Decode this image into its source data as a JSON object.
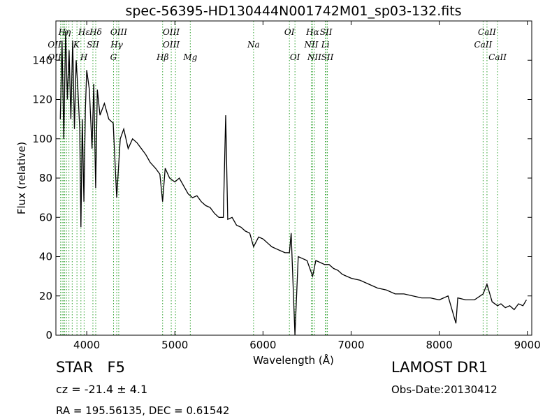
{
  "chart_data": {
    "type": "line",
    "title": "spec-56395-HD130444N001742M01_sp03-132.fits",
    "xlabel": "Wavelength (Å)",
    "ylabel": "Flux (relative)",
    "xlim": [
      3650,
      9050
    ],
    "ylim": [
      0,
      160
    ],
    "xticks": [
      4000,
      5000,
      6000,
      7000,
      8000,
      9000
    ],
    "yticks": [
      0,
      20,
      40,
      60,
      80,
      100,
      120,
      140
    ],
    "grid": false,
    "line_color": "#000000",
    "marker_color": "#2ca02c",
    "spectrum": {
      "x": [
        3700,
        3720,
        3740,
        3760,
        3780,
        3800,
        3820,
        3840,
        3860,
        3880,
        3900,
        3920,
        3934,
        3950,
        3968,
        3985,
        4000,
        4030,
        4060,
        4080,
        4101,
        4120,
        4150,
        4200,
        4250,
        4300,
        4340,
        4380,
        4420,
        4470,
        4520,
        4570,
        4620,
        4670,
        4720,
        4780,
        4830,
        4861,
        4890,
        4940,
        5000,
        5050,
        5100,
        5150,
        5200,
        5250,
        5300,
        5350,
        5400,
        5450,
        5500,
        5550,
        5577,
        5600,
        5650,
        5700,
        5750,
        5800,
        5850,
        5893,
        5950,
        6000,
        6050,
        6100,
        6150,
        6200,
        6250,
        6300,
        6320,
        6363,
        6400,
        6450,
        6500,
        6563,
        6600,
        6650,
        6700,
        6750,
        6800,
        6850,
        6900,
        6950,
        7000,
        7100,
        7200,
        7300,
        7400,
        7500,
        7600,
        7700,
        7800,
        7900,
        8000,
        8100,
        8190,
        8210,
        8300,
        8400,
        8498,
        8542,
        8600,
        8662,
        8700,
        8750,
        8800,
        8850,
        8900,
        8950,
        8990
      ],
      "y": [
        110,
        150,
        100,
        155,
        120,
        145,
        110,
        150,
        105,
        140,
        125,
        105,
        55,
        110,
        68,
        115,
        135,
        125,
        95,
        128,
        75,
        125,
        112,
        118,
        110,
        108,
        70,
        100,
        105,
        95,
        100,
        98,
        95,
        92,
        88,
        85,
        82,
        68,
        85,
        80,
        78,
        80,
        76,
        72,
        70,
        71,
        68,
        66,
        65,
        62,
        60,
        60,
        112,
        59,
        60,
        56,
        55,
        53,
        52,
        45,
        50,
        49,
        47,
        45,
        44,
        43,
        42,
        42,
        52,
        0,
        40,
        39,
        38,
        30,
        38,
        37,
        36,
        36,
        34,
        33,
        31,
        30,
        29,
        28,
        26,
        24,
        23,
        21,
        21,
        20,
        19,
        19,
        18,
        20,
        6,
        19,
        18,
        18,
        21,
        26,
        17,
        15,
        16,
        14,
        15,
        13,
        16,
        15,
        18
      ]
    },
    "lines": [
      {
        "label": "OII",
        "x": 3727,
        "row": 2,
        "anchor": "right"
      },
      {
        "label": "OII",
        "x": 3727,
        "row": 3,
        "anchor": "right"
      },
      {
        "label": "Hη",
        "x": 3835,
        "row": 1,
        "anchor": "right"
      },
      {
        "label": "Hε",
        "x": 3970,
        "row": 1,
        "anchor": "center"
      },
      {
        "label": "K",
        "x": 3934,
        "row": 2,
        "anchor": "right"
      },
      {
        "label": "H",
        "x": 3968,
        "row": 3,
        "anchor": "center"
      },
      {
        "label": "Hδ",
        "x": 4102,
        "row": 1,
        "anchor": "center"
      },
      {
        "label": "SII",
        "x": 4070,
        "row": 2,
        "anchor": "center"
      },
      {
        "label": "OIII",
        "x": 4363,
        "row": 1,
        "anchor": "center"
      },
      {
        "label": "Hγ",
        "x": 4340,
        "row": 2,
        "anchor": "center"
      },
      {
        "label": "G",
        "x": 4304,
        "row": 3,
        "anchor": "center"
      },
      {
        "label": "OIII",
        "x": 4959,
        "row": 1,
        "anchor": "center"
      },
      {
        "label": "OIII",
        "x": 4959,
        "row": 2,
        "anchor": "center"
      },
      {
        "label": "Hβ",
        "x": 4861,
        "row": 3,
        "anchor": "center"
      },
      {
        "label": "Mg",
        "x": 5175,
        "row": 3,
        "anchor": "center"
      },
      {
        "label": "Na",
        "x": 5893,
        "row": 2,
        "anchor": "center"
      },
      {
        "label": "OI",
        "x": 6300,
        "row": 1,
        "anchor": "center"
      },
      {
        "label": "OI",
        "x": 6363,
        "row": 3,
        "anchor": "center"
      },
      {
        "label": "Hα",
        "x": 6563,
        "row": 1,
        "anchor": "center"
      },
      {
        "label": "SII",
        "x": 6716,
        "row": 1,
        "anchor": "center"
      },
      {
        "label": "NII",
        "x": 6548,
        "row": 2,
        "anchor": "center"
      },
      {
        "label": "Li",
        "x": 6708,
        "row": 2,
        "anchor": "center"
      },
      {
        "label": "NII",
        "x": 6583,
        "row": 3,
        "anchor": "center"
      },
      {
        "label": "SII",
        "x": 6731,
        "row": 3,
        "anchor": "center"
      },
      {
        "label": "CaII",
        "x": 8542,
        "row": 1,
        "anchor": "center"
      },
      {
        "label": "CaII",
        "x": 8498,
        "row": 2,
        "anchor": "center"
      },
      {
        "label": "CaII",
        "x": 8662,
        "row": 3,
        "anchor": "center"
      }
    ],
    "marker_positions": [
      3703,
      3722,
      3734,
      3750,
      3771,
      3798,
      3835,
      3889,
      3934,
      3970,
      4070,
      4102,
      4304,
      4340,
      4363,
      4861,
      4959,
      5007,
      5175,
      5893,
      6300,
      6363,
      6548,
      6563,
      6583,
      6708,
      6716,
      6731,
      8498,
      8542,
      8662
    ]
  },
  "info": {
    "classification": "STAR   F5",
    "cz": "cz = -21.4 ± 4.1",
    "coords": "RA = 195.56135, DEC = 0.61542",
    "survey": "LAMOST DR1",
    "obs_date": "Obs-Date:20130412"
  }
}
